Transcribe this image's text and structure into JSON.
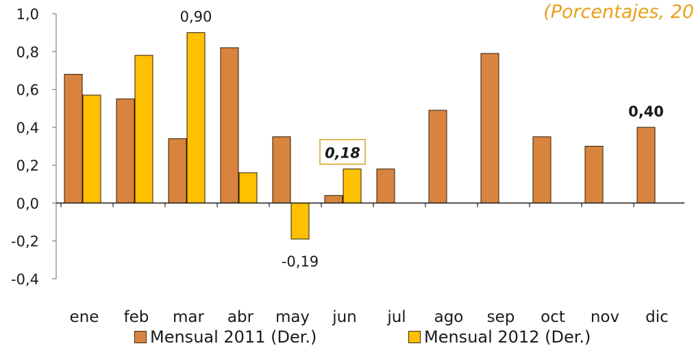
{
  "chart_data": {
    "type": "bar",
    "subtitle": "(Porcentajes, 20",
    "categories": [
      "ene",
      "feb",
      "mar",
      "abr",
      "may",
      "jun",
      "jul",
      "ago",
      "sep",
      "oct",
      "nov",
      "dic"
    ],
    "series": [
      {
        "name": "Mensual 2011 (Der.)",
        "color": "#d8843f",
        "values": [
          0.68,
          0.55,
          0.34,
          0.82,
          0.35,
          0.04,
          0.18,
          0.49,
          0.79,
          0.35,
          0.3,
          0.4
        ]
      },
      {
        "name": "Mensual 2012 (Der.)",
        "color": "#ffc000",
        "values": [
          0.57,
          0.78,
          0.9,
          0.16,
          -0.19,
          0.18,
          null,
          null,
          null,
          null,
          null,
          null
        ]
      }
    ],
    "ylim": [
      -0.4,
      1.0
    ],
    "yticks": [
      "1,0",
      "0,8",
      "0,6",
      "0,4",
      "0,2",
      "0,0",
      "-0,2",
      "-0,4"
    ],
    "ytick_values": [
      1.0,
      0.8,
      0.6,
      0.4,
      0.2,
      0.0,
      -0.2,
      -0.4
    ],
    "annotations": [
      {
        "text": "0,90",
        "series": 1,
        "index": 2,
        "style": "normal"
      },
      {
        "text": "-0,19",
        "series": 1,
        "index": 4,
        "style": "normal"
      },
      {
        "text": "0,18",
        "series": 1,
        "index": 5,
        "style": "bold-italic-boxed"
      },
      {
        "text": "0,40",
        "series": 0,
        "index": 11,
        "style": "bold"
      }
    ],
    "grid": false,
    "legend_position": "bottom"
  }
}
